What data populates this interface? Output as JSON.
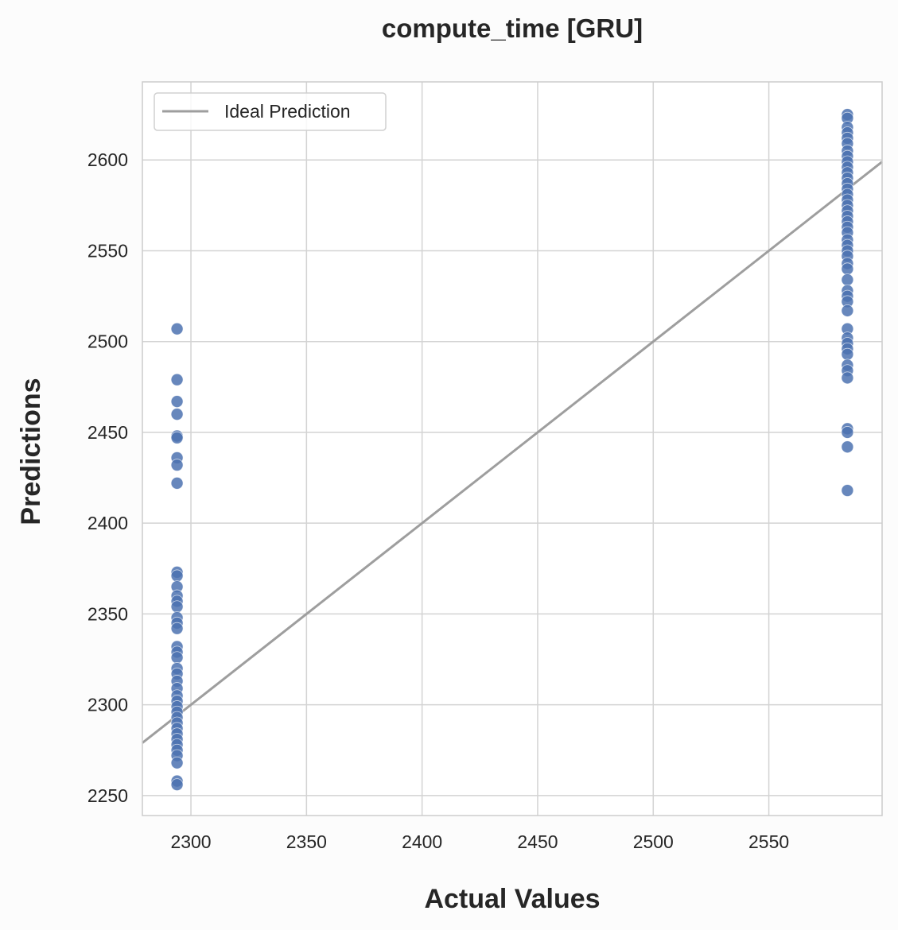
{
  "chart_data": {
    "type": "scatter",
    "title": "compute_time [GRU]",
    "xlabel": "Actual Values",
    "ylabel": "Predictions",
    "xlim": [
      2279,
      2599
    ],
    "ylim": [
      2239,
      2643
    ],
    "xticks": [
      2300,
      2350,
      2400,
      2450,
      2500,
      2550
    ],
    "yticks": [
      2250,
      2300,
      2350,
      2400,
      2450,
      2500,
      2550,
      2600
    ],
    "grid": true,
    "legend": {
      "position": "top-left",
      "entries": [
        "Ideal Prediction"
      ]
    },
    "ideal_line": {
      "name": "Ideal Prediction",
      "x": [
        2279,
        2599
      ],
      "y": [
        2279,
        2599
      ],
      "color": "#9e9e9e"
    },
    "series": [
      {
        "name": "predictions",
        "color": "#4c72b0",
        "points": [
          [
            2294,
            2507
          ],
          [
            2294,
            2479
          ],
          [
            2294,
            2467
          ],
          [
            2294,
            2460
          ],
          [
            2294,
            2448
          ],
          [
            2294,
            2447
          ],
          [
            2294,
            2436
          ],
          [
            2294,
            2432
          ],
          [
            2294,
            2422
          ],
          [
            2294,
            2373
          ],
          [
            2294,
            2371
          ],
          [
            2294,
            2365
          ],
          [
            2294,
            2360
          ],
          [
            2294,
            2357
          ],
          [
            2294,
            2354
          ],
          [
            2294,
            2348
          ],
          [
            2294,
            2345
          ],
          [
            2294,
            2342
          ],
          [
            2294,
            2332
          ],
          [
            2294,
            2329
          ],
          [
            2294,
            2326
          ],
          [
            2294,
            2320
          ],
          [
            2294,
            2317
          ],
          [
            2294,
            2313
          ],
          [
            2294,
            2309
          ],
          [
            2294,
            2305
          ],
          [
            2294,
            2302
          ],
          [
            2294,
            2299
          ],
          [
            2294,
            2296
          ],
          [
            2294,
            2293
          ],
          [
            2294,
            2290
          ],
          [
            2294,
            2287
          ],
          [
            2294,
            2284
          ],
          [
            2294,
            2281
          ],
          [
            2294,
            2278
          ],
          [
            2294,
            2275
          ],
          [
            2294,
            2272
          ],
          [
            2294,
            2268
          ],
          [
            2294,
            2258
          ],
          [
            2294,
            2256
          ],
          [
            2584,
            2625
          ],
          [
            2584,
            2623
          ],
          [
            2584,
            2618
          ],
          [
            2584,
            2615
          ],
          [
            2584,
            2612
          ],
          [
            2584,
            2609
          ],
          [
            2584,
            2605
          ],
          [
            2584,
            2602
          ],
          [
            2584,
            2599
          ],
          [
            2584,
            2596
          ],
          [
            2584,
            2593
          ],
          [
            2584,
            2590
          ],
          [
            2584,
            2587
          ],
          [
            2584,
            2584
          ],
          [
            2584,
            2581
          ],
          [
            2584,
            2578
          ],
          [
            2584,
            2575
          ],
          [
            2584,
            2572
          ],
          [
            2584,
            2569
          ],
          [
            2584,
            2566
          ],
          [
            2584,
            2563
          ],
          [
            2584,
            2560
          ],
          [
            2584,
            2556
          ],
          [
            2584,
            2553
          ],
          [
            2584,
            2550
          ],
          [
            2584,
            2547
          ],
          [
            2584,
            2543
          ],
          [
            2584,
            2540
          ],
          [
            2584,
            2534
          ],
          [
            2584,
            2528
          ],
          [
            2584,
            2525
          ],
          [
            2584,
            2522
          ],
          [
            2584,
            2517
          ],
          [
            2584,
            2507
          ],
          [
            2584,
            2502
          ],
          [
            2584,
            2499
          ],
          [
            2584,
            2496
          ],
          [
            2584,
            2493
          ],
          [
            2584,
            2487
          ],
          [
            2584,
            2484
          ],
          [
            2584,
            2480
          ],
          [
            2584,
            2452
          ],
          [
            2584,
            2450
          ],
          [
            2584,
            2442
          ],
          [
            2584,
            2418
          ]
        ]
      }
    ]
  }
}
